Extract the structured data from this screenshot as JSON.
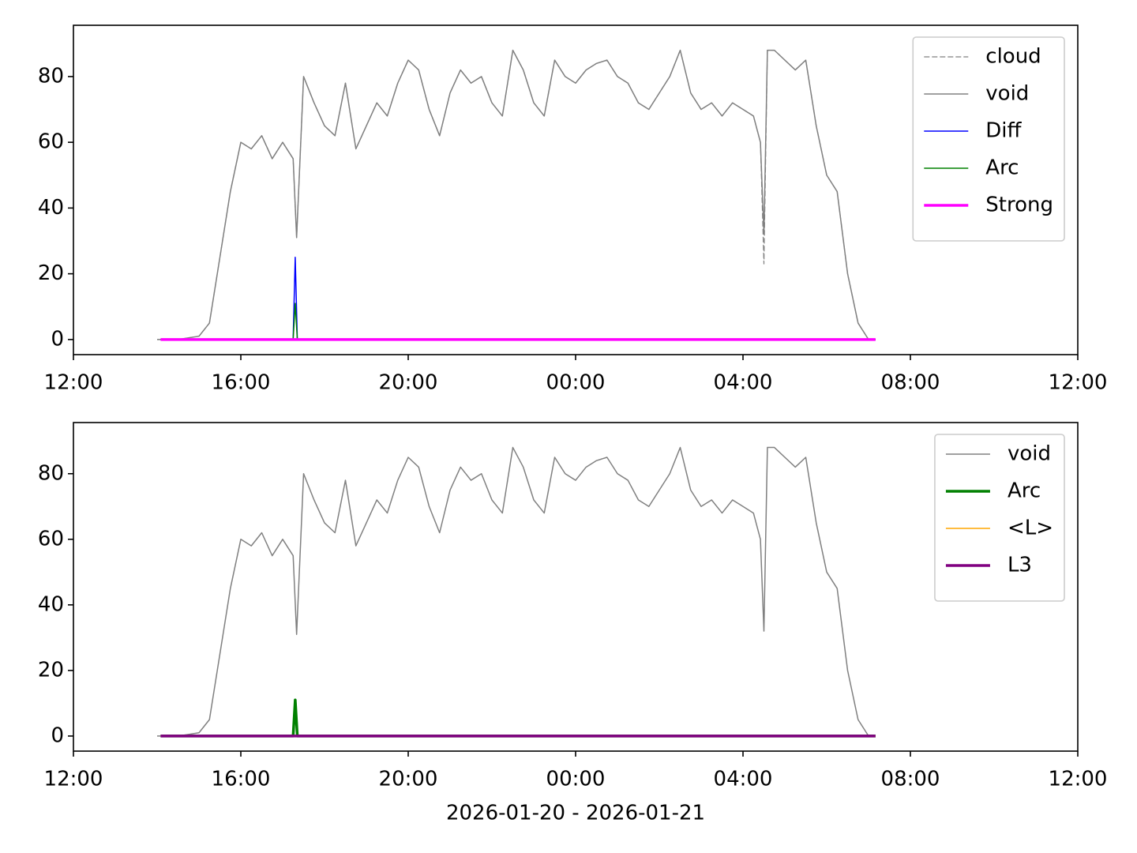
{
  "chart_data": [
    {
      "type": "line",
      "legend": "upper right",
      "grid": false,
      "xlim": [
        {
          "value": "2026-01-20T12:00",
          "label": "12:00"
        },
        {
          "value": "2026-01-21T12:00",
          "label": "12:00"
        }
      ],
      "xticks": [
        {
          "value": "2026-01-20T12:00",
          "label": "12:00"
        },
        {
          "value": "2026-01-20T16:00",
          "label": "16:00"
        },
        {
          "value": "2026-01-20T20:00",
          "label": "20:00"
        },
        {
          "value": "2026-01-21T00:00",
          "label": "00:00"
        },
        {
          "value": "2026-01-21T04:00",
          "label": "04:00"
        },
        {
          "value": "2026-01-21T08:00",
          "label": "08:00"
        },
        {
          "value": "2026-01-21T12:00",
          "label": "12:00"
        }
      ],
      "ylim": [
        -4.6,
        95.6
      ],
      "yticks": [
        0,
        20,
        40,
        60,
        80
      ],
      "x": [
        "2026-01-20T14:00",
        "2026-01-20T14:15",
        "2026-01-20T14:30",
        "2026-01-20T14:45",
        "2026-01-20T15:00",
        "2026-01-20T15:15",
        "2026-01-20T15:30",
        "2026-01-20T15:45",
        "2026-01-20T16:00",
        "2026-01-20T16:15",
        "2026-01-20T16:30",
        "2026-01-20T16:45",
        "2026-01-20T17:00",
        "2026-01-20T17:15",
        "2026-01-20T17:20",
        "2026-01-20T17:30",
        "2026-01-20T17:45",
        "2026-01-20T18:00",
        "2026-01-20T18:15",
        "2026-01-20T18:30",
        "2026-01-20T18:45",
        "2026-01-20T19:00",
        "2026-01-20T19:15",
        "2026-01-20T19:30",
        "2026-01-20T19:45",
        "2026-01-20T20:00",
        "2026-01-20T20:15",
        "2026-01-20T20:30",
        "2026-01-20T20:45",
        "2026-01-20T21:00",
        "2026-01-20T21:15",
        "2026-01-20T21:30",
        "2026-01-20T21:45",
        "2026-01-20T22:00",
        "2026-01-20T22:15",
        "2026-01-20T22:30",
        "2026-01-20T22:45",
        "2026-01-20T23:00",
        "2026-01-20T23:15",
        "2026-01-20T23:30",
        "2026-01-20T23:45",
        "2026-01-21T00:00",
        "2026-01-21T00:15",
        "2026-01-21T00:30",
        "2026-01-21T00:45",
        "2026-01-21T01:00",
        "2026-01-21T01:15",
        "2026-01-21T01:30",
        "2026-01-21T01:45",
        "2026-01-21T02:00",
        "2026-01-21T02:15",
        "2026-01-21T02:30",
        "2026-01-21T02:45",
        "2026-01-21T03:00",
        "2026-01-21T03:15",
        "2026-01-21T03:30",
        "2026-01-21T03:45",
        "2026-01-21T04:00",
        "2026-01-21T04:15",
        "2026-01-21T04:25",
        "2026-01-21T04:30",
        "2026-01-21T04:35",
        "2026-01-21T04:45",
        "2026-01-21T05:00",
        "2026-01-21T05:15",
        "2026-01-21T05:30",
        "2026-01-21T05:45",
        "2026-01-21T06:00",
        "2026-01-21T06:15",
        "2026-01-21T06:30",
        "2026-01-21T06:45",
        "2026-01-21T07:00",
        "2026-01-21T07:10"
      ],
      "series": [
        {
          "name": "cloud",
          "color": "#808080",
          "linestyle": "dashed",
          "width": 1.2,
          "values": [
            0,
            0,
            0,
            0.5,
            1,
            5,
            25,
            45,
            60,
            58,
            62,
            55,
            60,
            55,
            31,
            80,
            72,
            65,
            62,
            78,
            58,
            65,
            72,
            68,
            78,
            85,
            82,
            70,
            62,
            75,
            82,
            78,
            80,
            72,
            68,
            88,
            82,
            72,
            68,
            85,
            80,
            78,
            82,
            84,
            85,
            80,
            78,
            72,
            70,
            75,
            80,
            88,
            75,
            70,
            72,
            68,
            72,
            70,
            68,
            60,
            23,
            88,
            88,
            85,
            82,
            85,
            65,
            50,
            45,
            20,
            5,
            0,
            0
          ]
        },
        {
          "name": "void",
          "color": "#808080",
          "linestyle": "solid",
          "width": 1.5,
          "values": [
            0,
            0,
            0,
            0.5,
            1,
            5,
            25,
            45,
            60,
            58,
            62,
            55,
            60,
            55,
            31,
            80,
            72,
            65,
            62,
            78,
            58,
            65,
            72,
            68,
            78,
            85,
            82,
            70,
            62,
            75,
            82,
            78,
            80,
            72,
            68,
            88,
            82,
            72,
            68,
            85,
            80,
            78,
            82,
            84,
            85,
            80,
            78,
            72,
            70,
            75,
            80,
            88,
            75,
            70,
            72,
            68,
            72,
            70,
            68,
            60,
            32,
            88,
            88,
            85,
            82,
            85,
            65,
            50,
            45,
            20,
            5,
            0,
            0
          ]
        },
        {
          "name": "Diff",
          "color": "#0000ff",
          "linestyle": "solid",
          "width": 1.5,
          "x": [
            "2026-01-20T14:05",
            "2026-01-20T17:15",
            "2026-01-20T17:18",
            "2026-01-20T17:21",
            "2026-01-21T07:10"
          ],
          "values": [
            0,
            0,
            25,
            0,
            0
          ]
        },
        {
          "name": "Arc",
          "color": "#008000",
          "linestyle": "solid",
          "width": 1.5,
          "x": [
            "2026-01-20T14:05",
            "2026-01-20T17:15",
            "2026-01-20T17:18",
            "2026-01-20T17:21",
            "2026-01-21T07:10"
          ],
          "values": [
            0,
            0,
            11,
            0,
            0
          ]
        },
        {
          "name": "Strong",
          "color": "#ff00ff",
          "linestyle": "solid",
          "width": 3.5,
          "x": [
            "2026-01-20T14:05",
            "2026-01-21T07:10"
          ],
          "values": [
            0,
            0
          ]
        }
      ]
    },
    {
      "type": "line",
      "legend": "upper right",
      "grid": false,
      "xlabel": "2026-01-20 - 2026-01-21",
      "xlim": [
        {
          "value": "2026-01-20T12:00",
          "label": "12:00"
        },
        {
          "value": "2026-01-21T12:00",
          "label": "12:00"
        }
      ],
      "xticks": [
        {
          "value": "2026-01-20T12:00",
          "label": "12:00"
        },
        {
          "value": "2026-01-20T16:00",
          "label": "16:00"
        },
        {
          "value": "2026-01-20T20:00",
          "label": "20:00"
        },
        {
          "value": "2026-01-21T00:00",
          "label": "00:00"
        },
        {
          "value": "2026-01-21T04:00",
          "label": "04:00"
        },
        {
          "value": "2026-01-21T08:00",
          "label": "08:00"
        },
        {
          "value": "2026-01-21T12:00",
          "label": "12:00"
        }
      ],
      "ylim": [
        -4.6,
        95.6
      ],
      "yticks": [
        0,
        20,
        40,
        60,
        80
      ],
      "x": [
        "2026-01-20T14:00",
        "2026-01-20T14:15",
        "2026-01-20T14:30",
        "2026-01-20T14:45",
        "2026-01-20T15:00",
        "2026-01-20T15:15",
        "2026-01-20T15:30",
        "2026-01-20T15:45",
        "2026-01-20T16:00",
        "2026-01-20T16:15",
        "2026-01-20T16:30",
        "2026-01-20T16:45",
        "2026-01-20T17:00",
        "2026-01-20T17:15",
        "2026-01-20T17:20",
        "2026-01-20T17:30",
        "2026-01-20T17:45",
        "2026-01-20T18:00",
        "2026-01-20T18:15",
        "2026-01-20T18:30",
        "2026-01-20T18:45",
        "2026-01-20T19:00",
        "2026-01-20T19:15",
        "2026-01-20T19:30",
        "2026-01-20T19:45",
        "2026-01-20T20:00",
        "2026-01-20T20:15",
        "2026-01-20T20:30",
        "2026-01-20T20:45",
        "2026-01-20T21:00",
        "2026-01-20T21:15",
        "2026-01-20T21:30",
        "2026-01-20T21:45",
        "2026-01-20T22:00",
        "2026-01-20T22:15",
        "2026-01-20T22:30",
        "2026-01-20T22:45",
        "2026-01-20T23:00",
        "2026-01-20T23:15",
        "2026-01-20T23:30",
        "2026-01-20T23:45",
        "2026-01-21T00:00",
        "2026-01-21T00:15",
        "2026-01-21T00:30",
        "2026-01-21T00:45",
        "2026-01-21T01:00",
        "2026-01-21T01:15",
        "2026-01-21T01:30",
        "2026-01-21T01:45",
        "2026-01-21T02:00",
        "2026-01-21T02:15",
        "2026-01-21T02:30",
        "2026-01-21T02:45",
        "2026-01-21T03:00",
        "2026-01-21T03:15",
        "2026-01-21T03:30",
        "2026-01-21T03:45",
        "2026-01-21T04:00",
        "2026-01-21T04:15",
        "2026-01-21T04:25",
        "2026-01-21T04:30",
        "2026-01-21T04:35",
        "2026-01-21T04:45",
        "2026-01-21T05:00",
        "2026-01-21T05:15",
        "2026-01-21T05:30",
        "2026-01-21T05:45",
        "2026-01-21T06:00",
        "2026-01-21T06:15",
        "2026-01-21T06:30",
        "2026-01-21T06:45",
        "2026-01-21T07:00",
        "2026-01-21T07:10"
      ],
      "series": [
        {
          "name": "void",
          "color": "#808080",
          "linestyle": "solid",
          "width": 1.5,
          "values": [
            0,
            0,
            0,
            0.5,
            1,
            5,
            25,
            45,
            60,
            58,
            62,
            55,
            60,
            55,
            31,
            80,
            72,
            65,
            62,
            78,
            58,
            65,
            72,
            68,
            78,
            85,
            82,
            70,
            62,
            75,
            82,
            78,
            80,
            72,
            68,
            88,
            82,
            72,
            68,
            85,
            80,
            78,
            82,
            84,
            85,
            80,
            78,
            72,
            70,
            75,
            80,
            88,
            75,
            70,
            72,
            68,
            72,
            70,
            68,
            60,
            32,
            88,
            88,
            85,
            82,
            85,
            65,
            50,
            45,
            20,
            5,
            0,
            0
          ]
        },
        {
          "name": "Arc",
          "color": "#008000",
          "linestyle": "solid",
          "width": 3.5,
          "x": [
            "2026-01-20T14:05",
            "2026-01-20T17:15",
            "2026-01-20T17:18",
            "2026-01-20T17:21",
            "2026-01-21T07:10"
          ],
          "values": [
            0,
            0,
            11,
            0,
            0
          ]
        },
        {
          "name": "<L>",
          "color": "#ffa500",
          "linestyle": "solid",
          "width": 1.5,
          "x": [
            "2026-01-20T14:05",
            "2026-01-21T07:10"
          ],
          "values": [
            0,
            0
          ]
        },
        {
          "name": "L3",
          "color": "#800080",
          "linestyle": "solid",
          "width": 3.5,
          "x": [
            "2026-01-20T14:05",
            "2026-01-21T07:10"
          ],
          "values": [
            0,
            0
          ]
        }
      ]
    }
  ]
}
